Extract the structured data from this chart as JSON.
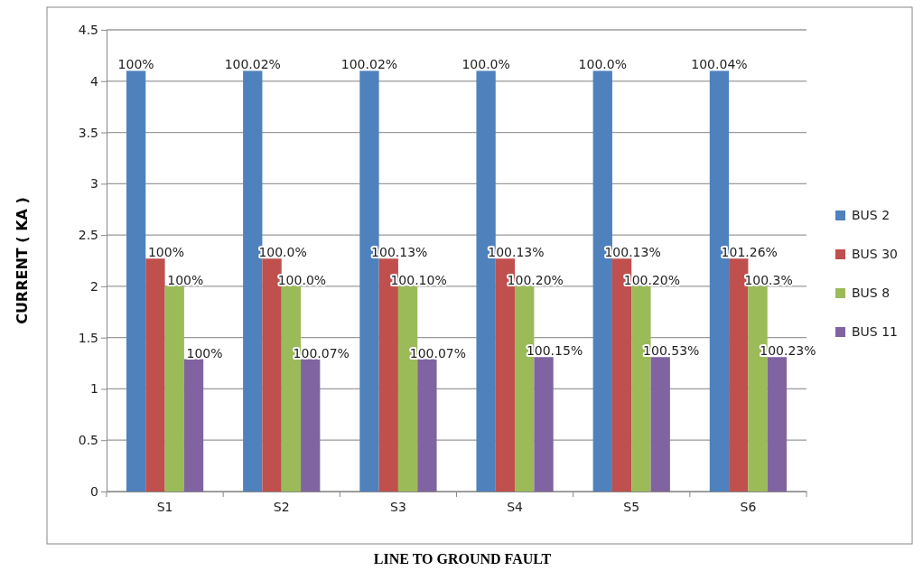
{
  "chart_data": {
    "type": "bar",
    "xlabel": "LINE TO GROUND FAULT",
    "ylabel": "CURRENT ( KA )",
    "categories": [
      "S1",
      "S2",
      "S3",
      "S4",
      "S5",
      "S6"
    ],
    "series": [
      {
        "name": "BUS 2",
        "color": "#4f81bd",
        "values": [
          4.1,
          4.1,
          4.1,
          4.1,
          4.1,
          4.1
        ]
      },
      {
        "name": "BUS 30",
        "color": "#c0504d",
        "values": [
          2.27,
          2.27,
          2.27,
          2.27,
          2.27,
          2.27
        ]
      },
      {
        "name": "BUS 8",
        "color": "#9bbb59",
        "values": [
          2.0,
          2.0,
          2.0,
          2.0,
          2.0,
          2.0
        ]
      },
      {
        "name": "BUS 11",
        "color": "#8064a2",
        "values": [
          1.29,
          1.29,
          1.29,
          1.31,
          1.31,
          1.31
        ]
      }
    ],
    "annotations": [
      "100%",
      "100.02%",
      "100.02%",
      "100.0%",
      "100.0%",
      "100.04%",
      "100%",
      "100.0%",
      "100.13%",
      "100.13%",
      "100.13%",
      "101.26%",
      "100%",
      "100.0%",
      "100.10%",
      "100.20%",
      "100.20%",
      "100.3%",
      "100%",
      "100.07%",
      "100.07%",
      "100.15%",
      "100.53%",
      "100.23%"
    ],
    "ylim": [
      0,
      4.5
    ],
    "yticks": [
      0,
      0.5,
      1,
      1.5,
      2,
      2.5,
      3,
      3.5,
      4,
      4.5
    ],
    "grid": "y",
    "legend": "right"
  }
}
